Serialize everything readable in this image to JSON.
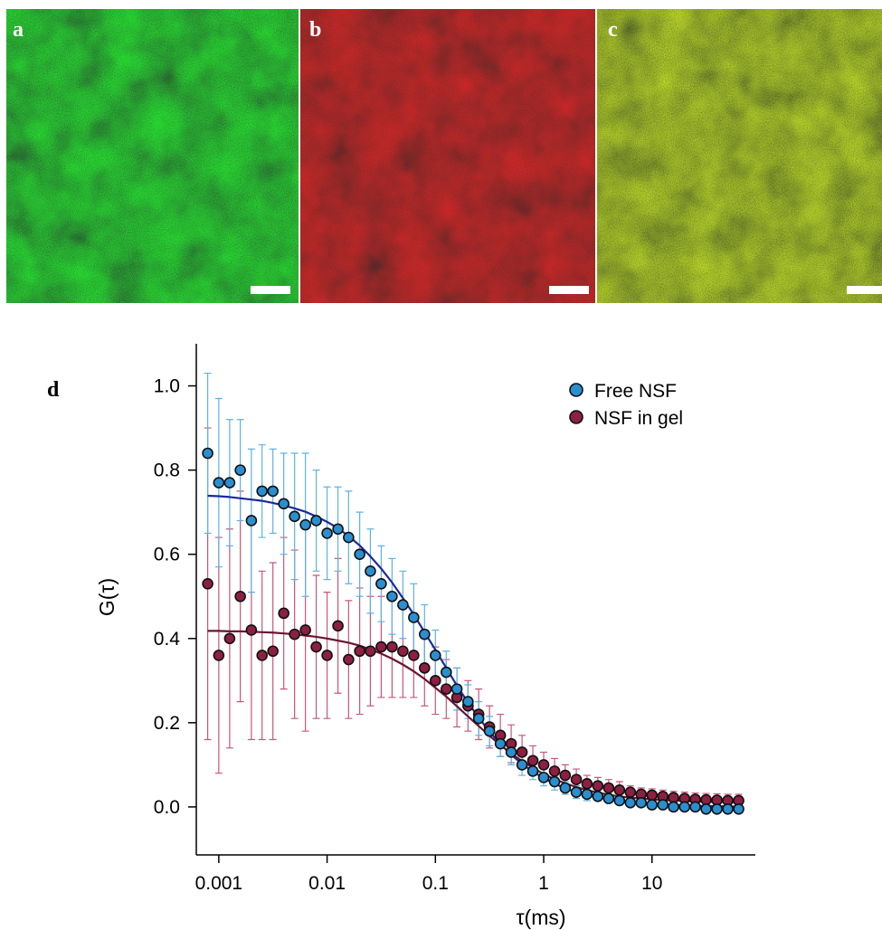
{
  "panel_labels": [
    "a",
    "b",
    "c"
  ],
  "chart_panel_label": "d",
  "chart_data": {
    "type": "scatter",
    "xlabel": "τ(ms)",
    "ylabel": "G(τ)",
    "xscale": "log",
    "xlim": [
      0.00062,
      90
    ],
    "ylim": [
      -0.114,
      1.1
    ],
    "xticks": [
      0.001,
      0.01,
      0.1,
      1,
      10
    ],
    "yticks": [
      {
        "value": 0,
        "label": "0.0"
      },
      0.2,
      0.4,
      0.6,
      0.8,
      {
        "value": 1,
        "label": "1.0"
      }
    ],
    "legend": "upper right",
    "x": [
      0.00079,
      0.001,
      0.00126,
      0.00158,
      0.002,
      0.00251,
      0.00316,
      0.00398,
      0.00501,
      0.00631,
      0.00794,
      0.01,
      0.0126,
      0.0158,
      0.02,
      0.0251,
      0.0316,
      0.0398,
      0.0501,
      0.0631,
      0.0794,
      0.1,
      0.126,
      0.158,
      0.2,
      0.251,
      0.316,
      0.398,
      0.501,
      0.631,
      0.794,
      1,
      1.26,
      1.58,
      2,
      2.51,
      3.16,
      3.98,
      5.01,
      6.31,
      7.94,
      10,
      12.6,
      15.8,
      20,
      25.1,
      31.6,
      39.8,
      50.1,
      63.1
    ],
    "series": [
      {
        "name": "Free NSF",
        "color": "#2a8fd0",
        "error_color": "#5fb2e4",
        "values": [
          0.84,
          0.77,
          0.77,
          0.8,
          0.68,
          0.75,
          0.75,
          0.72,
          0.69,
          0.67,
          0.68,
          0.65,
          0.66,
          0.64,
          0.6,
          0.56,
          0.53,
          0.5,
          0.48,
          0.45,
          0.41,
          0.36,
          0.32,
          0.28,
          0.25,
          0.21,
          0.18,
          0.15,
          0.13,
          0.1,
          0.085,
          0.07,
          0.06,
          0.045,
          0.035,
          0.03,
          0.025,
          0.02,
          0.015,
          0.01,
          0.01,
          0.005,
          0.005,
          0,
          0,
          0,
          -0.005,
          -0.005,
          -0.005,
          -0.005
        ],
        "errors": [
          0.19,
          0.2,
          0.15,
          0.12,
          0.17,
          0.11,
          0.1,
          0.12,
          0.15,
          0.17,
          0.12,
          0.11,
          0.1,
          0.11,
          0.1,
          0.1,
          0.09,
          0.09,
          0.08,
          0.08,
          0.07,
          0.06,
          0.05,
          0.05,
          0.04,
          0.04,
          0.035,
          0.03,
          0.03,
          0.025,
          0.02,
          0.02,
          0.02,
          0.015,
          0.015,
          0.015,
          0.01,
          0.01,
          0.01,
          0.01,
          0.01,
          0.01,
          0.01,
          0.01,
          0.01,
          0.01,
          0.01,
          0.01,
          0.01,
          0.01
        ]
      },
      {
        "name": "NSF in gel",
        "color": "#8e1f42",
        "error_color": "#c9567a",
        "values": [
          0.53,
          0.36,
          0.4,
          0.5,
          0.42,
          0.36,
          0.37,
          0.46,
          0.41,
          0.42,
          0.38,
          0.36,
          0.43,
          0.35,
          0.37,
          0.37,
          0.38,
          0.38,
          0.37,
          0.36,
          0.33,
          0.3,
          0.28,
          0.26,
          0.24,
          0.22,
          0.19,
          0.17,
          0.15,
          0.13,
          0.11,
          0.1,
          0.085,
          0.075,
          0.065,
          0.055,
          0.05,
          0.045,
          0.04,
          0.035,
          0.03,
          0.028,
          0.025,
          0.022,
          0.02,
          0.018,
          0.017,
          0.016,
          0.015,
          0.015
        ],
        "errors": [
          0.37,
          0.28,
          0.26,
          0.25,
          0.26,
          0.2,
          0.21,
          0.18,
          0.2,
          0.24,
          0.17,
          0.15,
          0.16,
          0.14,
          0.15,
          0.13,
          0.12,
          0.12,
          0.11,
          0.1,
          0.09,
          0.08,
          0.07,
          0.07,
          0.06,
          0.06,
          0.05,
          0.05,
          0.045,
          0.04,
          0.035,
          0.03,
          0.03,
          0.025,
          0.025,
          0.02,
          0.02,
          0.02,
          0.02,
          0.015,
          0.015,
          0.015,
          0.015,
          0.015,
          0.015,
          0.015,
          0.015,
          0.015,
          0.015,
          0.015
        ]
      }
    ],
    "fits": [
      {
        "color": "#1a2a9c",
        "values": [
          0.739,
          0.738,
          0.736,
          0.733,
          0.73,
          0.727,
          0.722,
          0.716,
          0.709,
          0.701,
          0.69,
          0.677,
          0.662,
          0.643,
          0.621,
          0.595,
          0.566,
          0.533,
          0.496,
          0.457,
          0.415,
          0.373,
          0.33,
          0.288,
          0.248,
          0.212,
          0.179,
          0.149,
          0.124,
          0.102,
          0.084,
          0.068,
          0.055,
          0.044,
          0.035,
          0.028,
          0.023,
          0.018,
          0.015,
          0.012,
          0.009,
          0.007,
          0.006,
          0.005,
          0.004,
          0.003,
          0.002,
          0.002,
          0.001,
          0.001
        ]
      },
      {
        "color": "#6b1530",
        "values": [
          0.418,
          0.418,
          0.417,
          0.417,
          0.416,
          0.415,
          0.414,
          0.412,
          0.41,
          0.407,
          0.404,
          0.4,
          0.395,
          0.39,
          0.383,
          0.374,
          0.364,
          0.352,
          0.338,
          0.322,
          0.304,
          0.283,
          0.262,
          0.239,
          0.215,
          0.192,
          0.169,
          0.147,
          0.127,
          0.109,
          0.093,
          0.078,
          0.066,
          0.056,
          0.047,
          0.04,
          0.034,
          0.029,
          0.025,
          0.022,
          0.02,
          0.018,
          0.016,
          0.015,
          0.014,
          0.013,
          0.012,
          0.012,
          0.012,
          0.011
        ]
      }
    ]
  }
}
